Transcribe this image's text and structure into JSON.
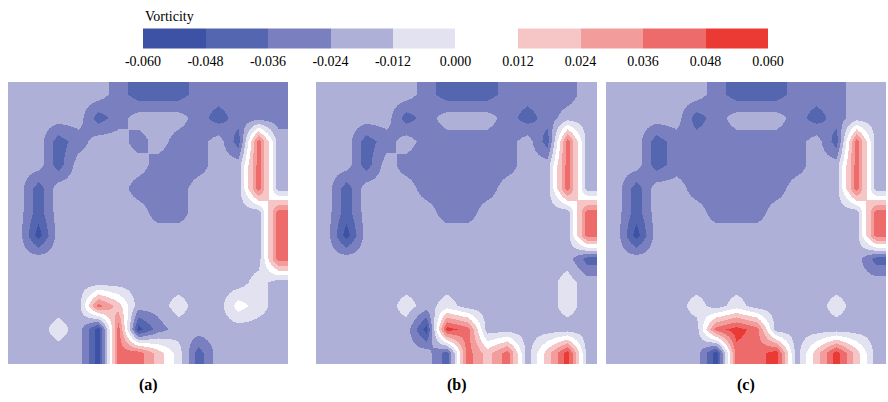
{
  "chart_data": {
    "type": "heatmap",
    "colorbar_title": "Vorticity",
    "colorbar_range": [
      -0.06,
      0.06
    ],
    "colorbar_ticks": [
      {
        "value": -0.06,
        "label": "-0.060"
      },
      {
        "value": -0.048,
        "label": "-0.048"
      },
      {
        "value": -0.036,
        "label": "-0.036"
      },
      {
        "value": -0.024,
        "label": "-0.024"
      },
      {
        "value": -0.012,
        "label": "-0.012"
      },
      {
        "value": 0,
        "label": "0.000"
      },
      {
        "value": 0.012,
        "label": "0.012"
      },
      {
        "value": 0.024,
        "label": "0.024"
      },
      {
        "value": 0.036,
        "label": "0.036"
      },
      {
        "value": 0.048,
        "label": "0.048"
      },
      {
        "value": 0.06,
        "label": "0.060"
      }
    ],
    "colors": [
      "#3d52a4",
      "#5566b0",
      "#7a80bf",
      "#aeb0d8",
      "#e2e2f0",
      "#ffffff",
      "#f6c6c6",
      "#f29c9c",
      "#ed6b6b",
      "#ea3a33"
    ],
    "tick_labels": false,
    "panels": [
      {
        "label": "(a)",
        "cells": [
          [
            -0.018,
            -0.018,
            -0.018,
            -0.018,
            -0.018,
            -0.03,
            -0.042,
            -0.042,
            -0.042,
            -0.03,
            -0.03,
            -0.03,
            -0.03,
            -0.03
          ],
          [
            -0.018,
            -0.018,
            -0.018,
            -0.018,
            -0.042,
            -0.03,
            -0.018,
            -0.018,
            -0.018,
            -0.03,
            -0.042,
            -0.03,
            -0.03,
            -0.03
          ],
          [
            -0.018,
            -0.018,
            -0.042,
            -0.03,
            -0.018,
            -0.018,
            -0.03,
            -0.018,
            -0.03,
            -0.03,
            -0.018,
            -0.042,
            0.042,
            -0.018
          ],
          [
            -0.018,
            -0.018,
            -0.042,
            -0.018,
            -0.018,
            -0.018,
            -0.018,
            -0.03,
            -0.03,
            -0.03,
            -0.018,
            -0.018,
            0.042,
            -0.018
          ],
          [
            -0.018,
            -0.042,
            -0.018,
            -0.018,
            -0.018,
            -0.018,
            -0.03,
            -0.03,
            -0.03,
            -0.018,
            -0.018,
            -0.018,
            0.042,
            -0.018
          ],
          [
            -0.018,
            -0.042,
            -0.018,
            -0.018,
            -0.018,
            -0.018,
            -0.018,
            -0.03,
            -0.03,
            -0.018,
            -0.018,
            -0.018,
            -0.018,
            0.042
          ],
          [
            -0.018,
            -0.054,
            -0.018,
            -0.018,
            -0.018,
            -0.018,
            -0.018,
            -0.018,
            -0.018,
            -0.018,
            -0.018,
            -0.018,
            -0.018,
            0.042
          ],
          [
            -0.018,
            -0.018,
            -0.018,
            -0.018,
            -0.018,
            -0.018,
            -0.018,
            -0.018,
            -0.018,
            -0.018,
            -0.018,
            -0.018,
            -0.018,
            0.042
          ],
          [
            -0.018,
            -0.018,
            -0.018,
            -0.018,
            -0.018,
            -0.018,
            -0.018,
            -0.018,
            -0.018,
            -0.018,
            -0.018,
            -0.018,
            -0.006,
            -0.018
          ],
          [
            -0.018,
            -0.018,
            -0.018,
            -0.018,
            0.042,
            0.018,
            -0.018,
            -0.018,
            -0.006,
            -0.018,
            -0.018,
            0.006,
            -0.006,
            -0.018
          ],
          [
            -0.018,
            -0.018,
            -0.006,
            -0.018,
            -0.054,
            0.042,
            -0.054,
            -0.03,
            -0.018,
            -0.018,
            -0.018,
            -0.018,
            -0.018,
            -0.018
          ],
          [
            -0.018,
            -0.018,
            -0.018,
            -0.018,
            -0.054,
            0.042,
            0.042,
            0.018,
            -0.006,
            -0.042,
            -0.018,
            -0.018,
            -0.018,
            -0.018
          ]
        ]
      },
      {
        "label": "(b)",
        "cells": [
          [
            -0.018,
            -0.018,
            -0.018,
            -0.018,
            -0.018,
            -0.03,
            -0.042,
            -0.042,
            -0.042,
            -0.03,
            -0.03,
            -0.03,
            -0.03,
            -0.018
          ],
          [
            -0.018,
            -0.018,
            -0.018,
            -0.018,
            -0.042,
            -0.03,
            -0.018,
            -0.018,
            -0.018,
            -0.03,
            -0.042,
            -0.03,
            -0.018,
            -0.018
          ],
          [
            -0.018,
            -0.018,
            -0.042,
            -0.03,
            -0.018,
            -0.03,
            -0.03,
            -0.03,
            -0.03,
            -0.03,
            -0.018,
            -0.042,
            0.042,
            -0.018
          ],
          [
            -0.018,
            -0.018,
            -0.042,
            -0.018,
            -0.03,
            -0.03,
            -0.03,
            -0.03,
            -0.03,
            -0.03,
            -0.018,
            -0.018,
            0.042,
            -0.018
          ],
          [
            -0.018,
            -0.042,
            -0.018,
            -0.018,
            -0.018,
            -0.03,
            -0.03,
            -0.03,
            -0.03,
            -0.018,
            -0.018,
            -0.018,
            0.042,
            -0.018
          ],
          [
            -0.018,
            -0.042,
            -0.018,
            -0.018,
            -0.018,
            -0.018,
            -0.03,
            -0.03,
            -0.018,
            -0.018,
            -0.018,
            -0.018,
            -0.018,
            0.042
          ],
          [
            -0.018,
            -0.054,
            -0.018,
            -0.018,
            -0.018,
            -0.018,
            -0.018,
            -0.018,
            -0.018,
            -0.018,
            -0.018,
            -0.018,
            -0.018,
            0.042
          ],
          [
            -0.018,
            -0.018,
            -0.018,
            -0.018,
            -0.018,
            -0.018,
            -0.018,
            -0.018,
            -0.018,
            -0.018,
            -0.018,
            -0.018,
            -0.018,
            -0.042
          ],
          [
            -0.018,
            -0.018,
            -0.018,
            -0.018,
            -0.018,
            -0.018,
            -0.018,
            -0.018,
            -0.018,
            -0.018,
            -0.018,
            -0.018,
            -0.006,
            -0.018
          ],
          [
            -0.018,
            -0.018,
            -0.018,
            -0.018,
            -0.006,
            -0.018,
            -0.006,
            -0.018,
            -0.018,
            -0.018,
            -0.018,
            -0.018,
            -0.006,
            -0.018
          ],
          [
            -0.018,
            -0.018,
            -0.018,
            -0.018,
            -0.018,
            -0.054,
            0.054,
            0.042,
            -0.018,
            -0.018,
            -0.018,
            -0.018,
            -0.018,
            -0.018
          ],
          [
            -0.018,
            -0.018,
            -0.018,
            -0.018,
            -0.018,
            -0.018,
            -0.042,
            0.042,
            0.018,
            0.042,
            -0.018,
            0.018,
            0.054,
            -0.018
          ]
        ]
      },
      {
        "label": "(c)",
        "cells": [
          [
            -0.018,
            -0.018,
            -0.018,
            -0.018,
            -0.018,
            -0.03,
            -0.042,
            -0.042,
            -0.042,
            -0.03,
            -0.03,
            -0.03,
            -0.018,
            -0.018
          ],
          [
            -0.018,
            -0.018,
            -0.018,
            -0.018,
            -0.042,
            -0.03,
            -0.018,
            -0.018,
            -0.018,
            -0.03,
            -0.042,
            -0.03,
            -0.018,
            -0.018
          ],
          [
            -0.018,
            -0.018,
            -0.042,
            -0.03,
            -0.03,
            -0.03,
            -0.03,
            -0.03,
            -0.03,
            -0.03,
            -0.018,
            -0.042,
            0.042,
            -0.018
          ],
          [
            -0.018,
            -0.018,
            -0.042,
            -0.03,
            -0.03,
            -0.03,
            -0.03,
            -0.03,
            -0.03,
            -0.03,
            -0.018,
            -0.018,
            0.042,
            -0.018
          ],
          [
            -0.018,
            -0.042,
            -0.018,
            -0.018,
            -0.03,
            -0.03,
            -0.03,
            -0.03,
            -0.03,
            -0.018,
            -0.018,
            -0.018,
            0.042,
            -0.018
          ],
          [
            -0.018,
            -0.042,
            -0.018,
            -0.018,
            -0.018,
            -0.03,
            -0.03,
            -0.03,
            -0.018,
            -0.018,
            -0.018,
            -0.018,
            -0.018,
            0.042
          ],
          [
            -0.018,
            -0.054,
            -0.018,
            -0.018,
            -0.018,
            -0.018,
            -0.018,
            -0.018,
            -0.018,
            -0.018,
            -0.018,
            -0.018,
            -0.018,
            0.042
          ],
          [
            -0.018,
            -0.018,
            -0.018,
            -0.018,
            -0.018,
            -0.018,
            -0.018,
            -0.018,
            -0.018,
            -0.018,
            -0.018,
            -0.018,
            -0.018,
            -0.042
          ],
          [
            -0.018,
            -0.018,
            -0.018,
            -0.018,
            -0.018,
            -0.018,
            -0.018,
            -0.018,
            -0.018,
            -0.018,
            -0.018,
            -0.018,
            -0.018,
            -0.018
          ],
          [
            -0.018,
            -0.018,
            -0.018,
            -0.018,
            -0.006,
            -0.018,
            -0.006,
            -0.018,
            -0.018,
            -0.018,
            -0.018,
            -0.006,
            -0.018,
            -0.018
          ],
          [
            -0.018,
            -0.018,
            -0.018,
            -0.018,
            -0.018,
            0.042,
            0.054,
            0.042,
            -0.018,
            -0.018,
            -0.018,
            -0.018,
            -0.018,
            -0.018
          ],
          [
            -0.018,
            -0.018,
            -0.018,
            -0.018,
            -0.018,
            -0.054,
            0.042,
            0.042,
            0.054,
            -0.018,
            0.018,
            0.054,
            0.018,
            -0.018
          ]
        ]
      }
    ]
  }
}
